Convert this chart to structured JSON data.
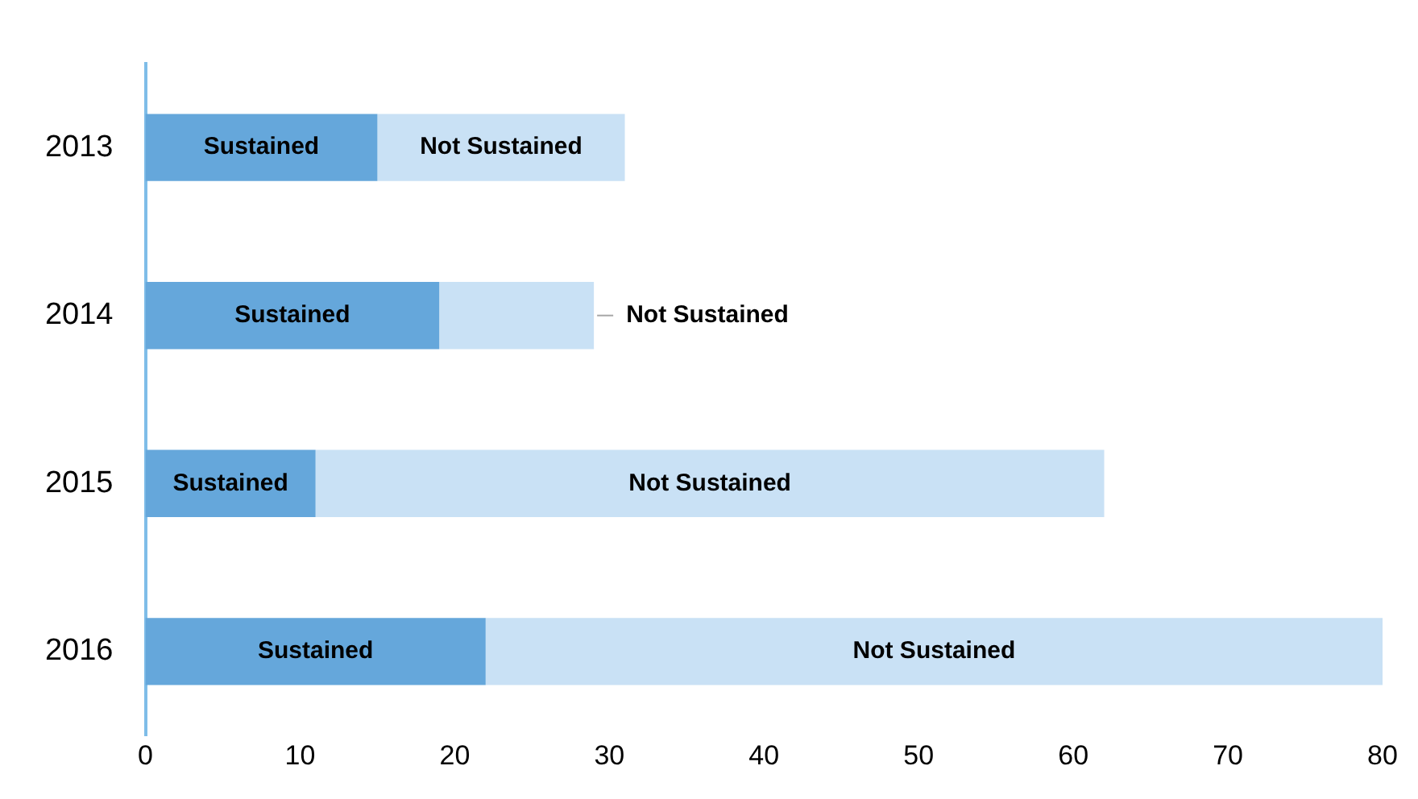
{
  "chart_data": {
    "type": "bar",
    "orientation": "horizontal",
    "stacked": true,
    "categories": [
      "2013",
      "2014",
      "2015",
      "2016"
    ],
    "series": [
      {
        "name": "Sustained",
        "color": "#65a7db",
        "values": [
          15,
          19,
          11,
          22
        ]
      },
      {
        "name": "Not Sustained",
        "color": "#c9e1f5",
        "values": [
          16,
          10,
          51,
          58
        ]
      }
    ],
    "xlim": [
      0,
      80
    ],
    "xticks": [
      0,
      10,
      20,
      30,
      40,
      50,
      60,
      70,
      80
    ],
    "grid": false,
    "legend": false
  }
}
